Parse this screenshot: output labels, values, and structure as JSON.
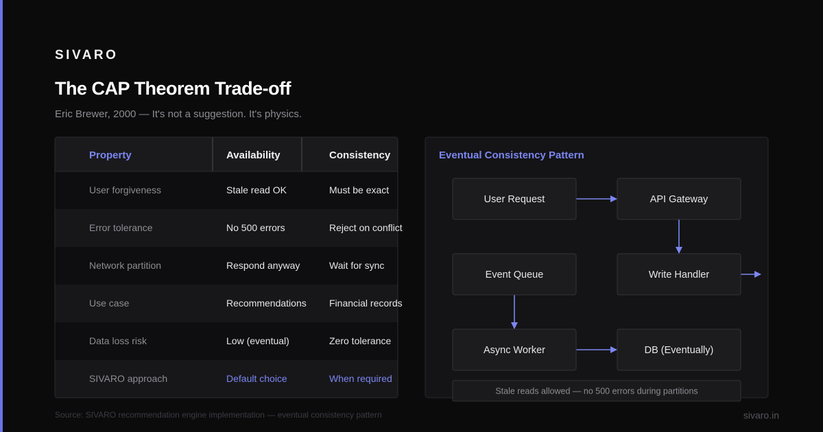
{
  "brand": "SIVARO",
  "title": "The CAP Theorem Trade-off",
  "subtitle": "Eric Brewer, 2000 — It's not a suggestion. It's physics.",
  "table": {
    "headers": [
      "Property",
      "Availability",
      "Consistency"
    ],
    "rows": [
      [
        "User forgiveness",
        "Stale read OK",
        "Must be exact"
      ],
      [
        "Error tolerance",
        "No 500 errors",
        "Reject on conflict"
      ],
      [
        "Network partition",
        "Respond anyway",
        "Wait for sync"
      ],
      [
        "Use case",
        "Recommendations",
        "Financial records"
      ],
      [
        "Data loss risk",
        "Low (eventual)",
        "Zero tolerance"
      ],
      [
        "SIVARO approach",
        "Default choice",
        "When required"
      ]
    ]
  },
  "diagram": {
    "title": "Eventual Consistency Pattern",
    "nodes": [
      {
        "label": "User Request"
      },
      {
        "label": "API Gateway"
      },
      {
        "label": "Event Queue"
      },
      {
        "label": "Write Handler"
      },
      {
        "label": "Async Worker"
      },
      {
        "label": "DB (Eventually)"
      }
    ],
    "note": "Stale reads allowed — no 500 errors during partitions"
  },
  "source": "Source: SIVARO recommendation engine implementation — eventual consistency pattern",
  "footer": "sivaro.in"
}
